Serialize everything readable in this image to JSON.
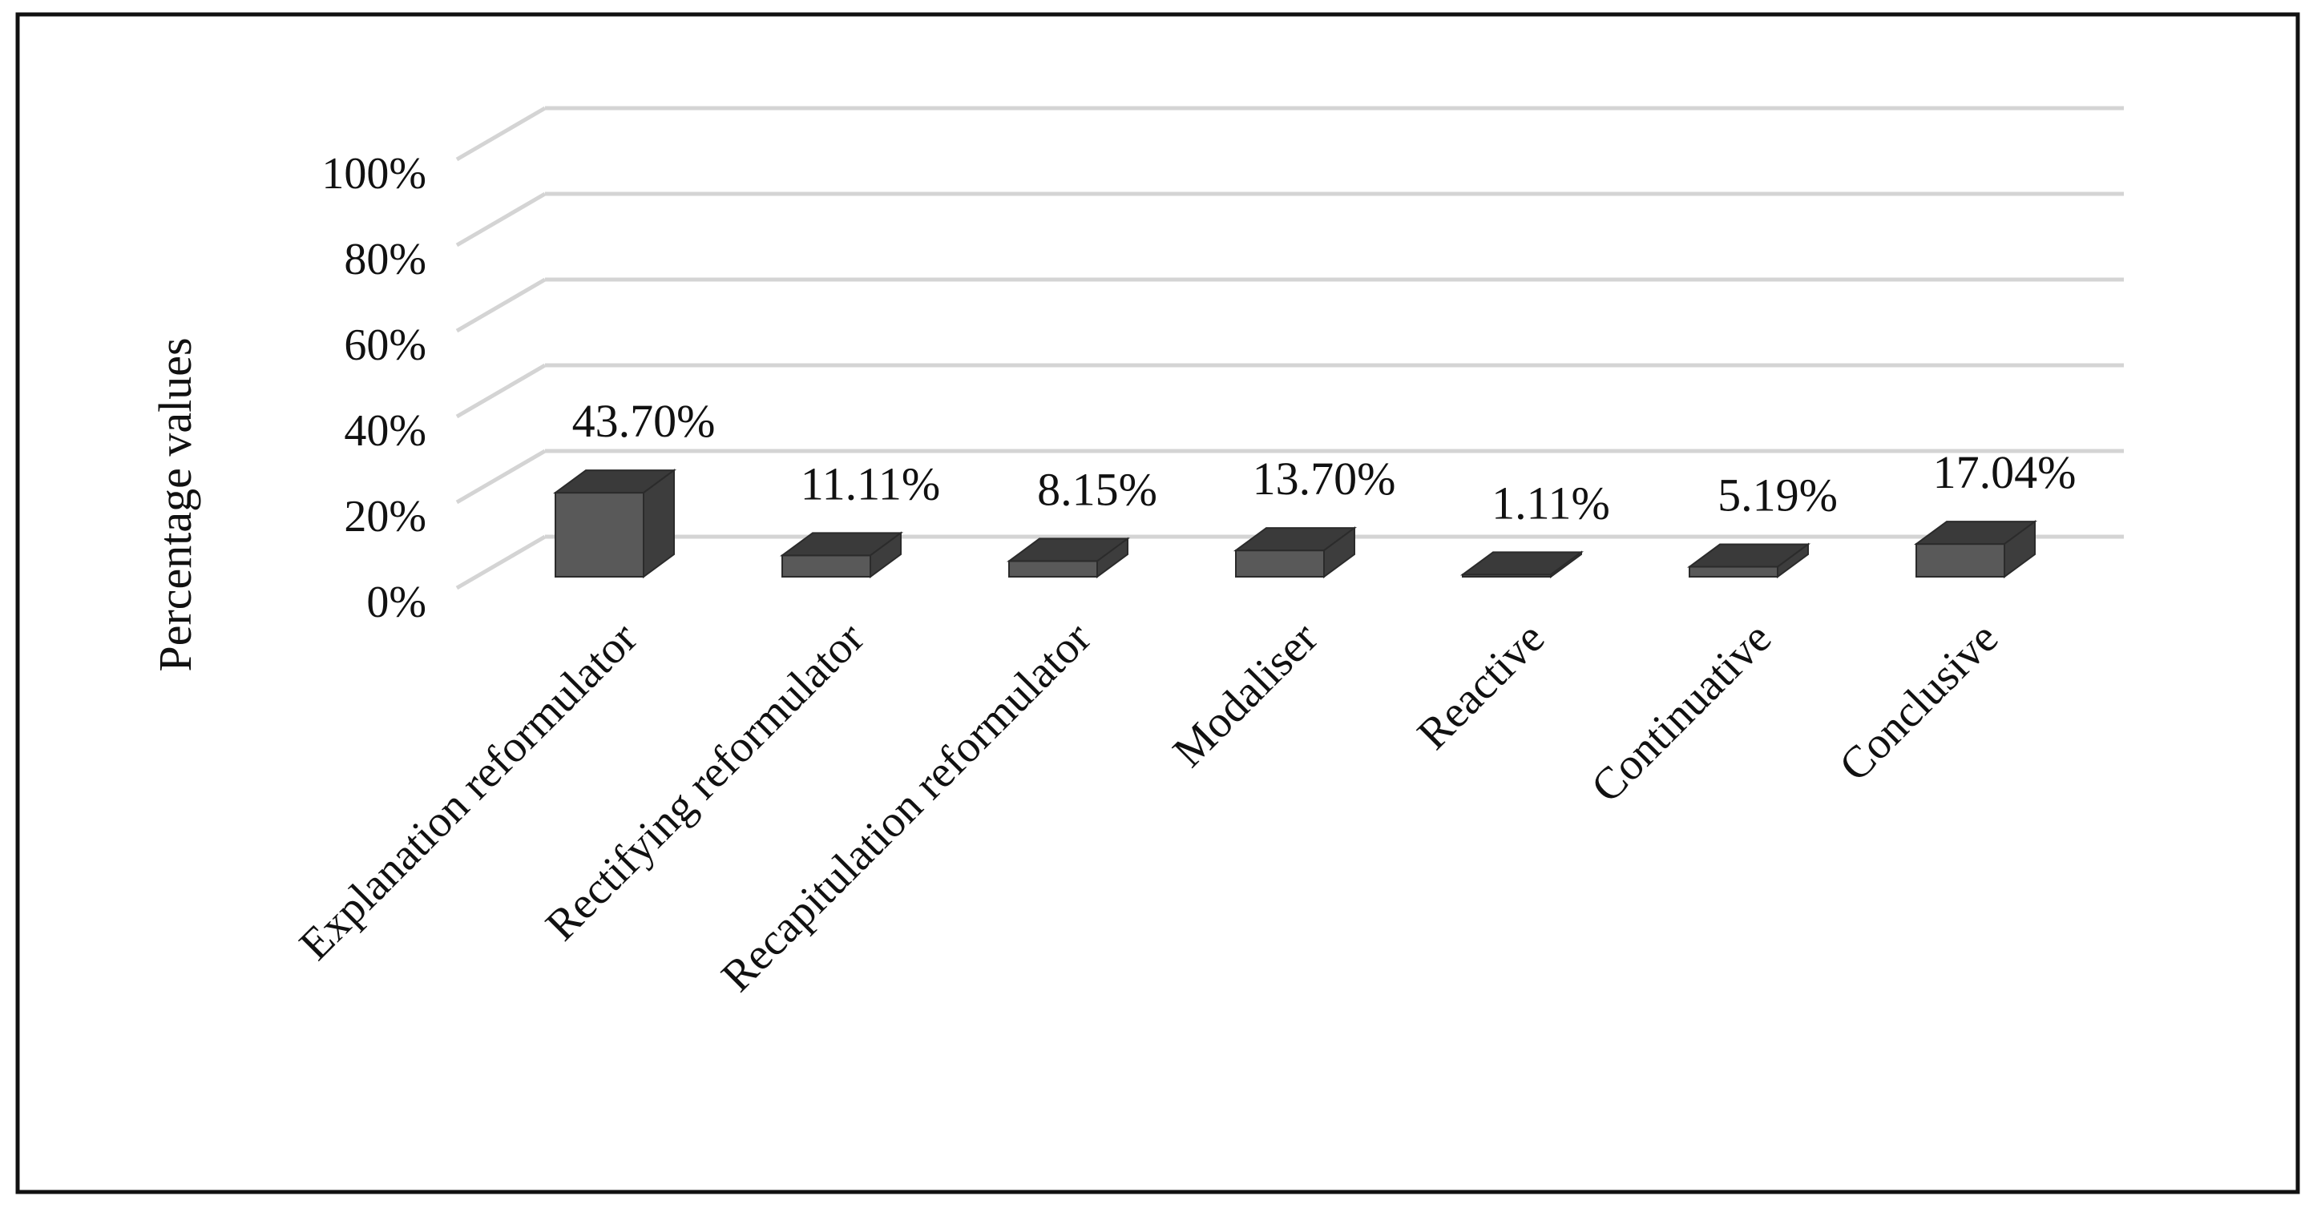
{
  "chart_data": {
    "type": "bar",
    "ylabel": "Percentage values",
    "xlabel": "",
    "categories": [
      "Explanation reformulator",
      "Rectifying reformulator",
      "Recapitulation reformulator",
      "Modaliser",
      "Reactive",
      "Continuative",
      "Conclusive"
    ],
    "values": [
      43.7,
      11.11,
      8.15,
      13.7,
      1.11,
      5.19,
      17.04
    ],
    "data_labels": [
      "43.70%",
      "11.11%",
      "8.15%",
      "13.70%",
      "1.11%",
      "5.19%",
      "17.04%"
    ],
    "yticks": [
      0,
      20,
      40,
      60,
      80,
      100
    ],
    "ytick_labels": [
      "0%",
      "20%",
      "40%",
      "60%",
      "80%",
      "100%"
    ],
    "ylim": [
      0,
      100
    ],
    "grid": true,
    "style": "3d-column",
    "colors": {
      "bar_front": "#595959",
      "bar_side": "#3d3d3d",
      "bar_top": "#3a3a3a",
      "grid": "#d4d4d4",
      "frame": "#111111"
    }
  }
}
